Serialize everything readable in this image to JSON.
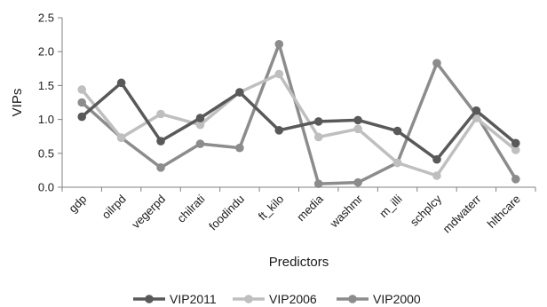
{
  "chart_data": {
    "type": "line",
    "categories": [
      "gdp",
      "oilrpd",
      "vegerpd",
      "chilrati",
      "foodindu",
      "ft_kilo",
      "media",
      "washmr",
      "m_illi",
      "schplcy",
      "mdwaterr",
      "hlthcare"
    ],
    "series": [
      {
        "name": "VIP2011",
        "color": "#595959",
        "values": [
          1.04,
          1.54,
          0.68,
          1.02,
          1.4,
          0.84,
          0.97,
          0.99,
          0.83,
          0.41,
          1.13,
          0.65
        ]
      },
      {
        "name": "VIP2006",
        "color": "#bfbfbf",
        "values": [
          1.44,
          0.73,
          1.08,
          0.92,
          1.4,
          1.67,
          0.74,
          0.86,
          0.36,
          0.17,
          1.02,
          0.55
        ]
      },
      {
        "name": "VIP2000",
        "color": "#8c8c8c",
        "values": [
          1.25,
          0.73,
          0.29,
          0.64,
          0.58,
          2.11,
          0.05,
          0.07,
          0.36,
          1.83,
          1.07,
          0.12
        ]
      }
    ],
    "xlabel": "Predictors",
    "ylabel": "VIPs",
    "ylim": [
      0,
      2.5
    ],
    "yticks": [
      "0.0",
      "0.5",
      "1.0",
      "1.5",
      "2.0",
      "2.5"
    ],
    "grid": false,
    "legend_position": "bottom"
  }
}
